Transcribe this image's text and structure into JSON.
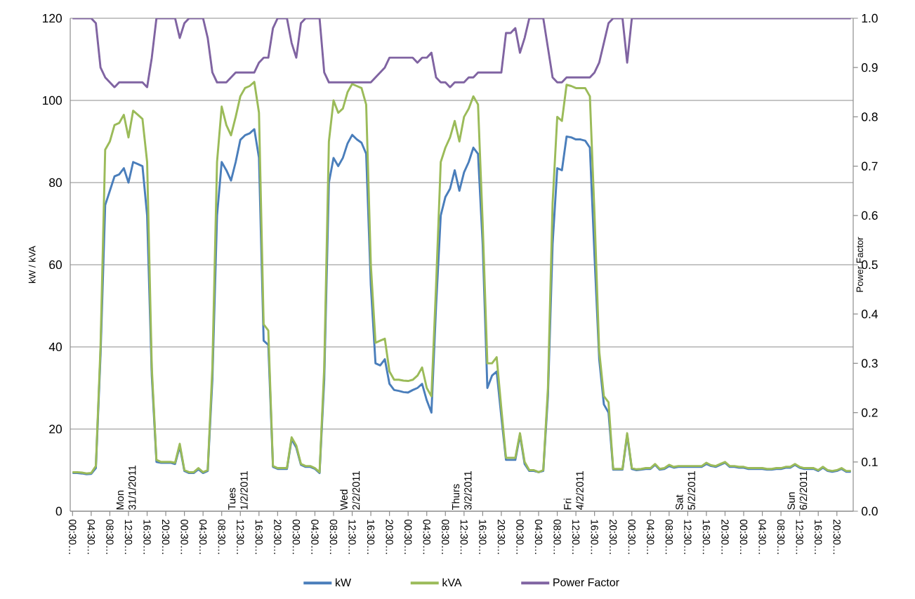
{
  "chart_data": {
    "type": "line",
    "ylabel": "kW / kVA",
    "y2label": "Power Factor",
    "ylim": [
      0,
      120
    ],
    "yticks": [
      0,
      20,
      40,
      60,
      80,
      100,
      120
    ],
    "y2lim": [
      0,
      1
    ],
    "y2ticks": [
      {
        "value": 0,
        "label": "0.0"
      },
      {
        "value": 0.1,
        "label": "0.1"
      },
      {
        "value": 0.2,
        "label": "0.2"
      },
      {
        "value": 0.3,
        "label": "0.3"
      },
      {
        "value": 0.4,
        "label": "0.4"
      },
      {
        "value": 0.5,
        "label": "0.5"
      },
      {
        "value": 0.6,
        "label": "0.6"
      },
      {
        "value": 0.7,
        "label": "0.7"
      },
      {
        "value": 0.8,
        "label": "0.8"
      },
      {
        "value": 0.9,
        "label": "0.9"
      },
      {
        "value": 1,
        "label": "1.0"
      }
    ],
    "categories": [
      "00:30…",
      null,
      null,
      null,
      "04:30…",
      null,
      null,
      null,
      "08:30…",
      null,
      null,
      null,
      "12:30…",
      null,
      null,
      null,
      "16:30…",
      null,
      null,
      null,
      "20:30…",
      null,
      null,
      null,
      "00:30…",
      null,
      null,
      null,
      "04:30…",
      null,
      null,
      null,
      "08:30…",
      null,
      null,
      null,
      "12:30…",
      null,
      null,
      null,
      "16:30…",
      null,
      null,
      null,
      "20:30…",
      null,
      null,
      null,
      "00:30…",
      null,
      null,
      null,
      "04:30…",
      null,
      null,
      null,
      "08:30…",
      null,
      null,
      null,
      "12:30…",
      null,
      null,
      null,
      "16:30…",
      null,
      null,
      null,
      "20:30…",
      null,
      null,
      null,
      "00:30…",
      null,
      null,
      null,
      "04:30…",
      null,
      null,
      null,
      "08:30…",
      null,
      null,
      null,
      "12:30…",
      null,
      null,
      null,
      "16:30…",
      null,
      null,
      null,
      "20:30…",
      null,
      null,
      null,
      "00:30…",
      null,
      null,
      null,
      "04:30…",
      null,
      null,
      null,
      "08:30…",
      null,
      null,
      null,
      "12:30…",
      null,
      null,
      null,
      "16:30…",
      null,
      null,
      null,
      "20:30…",
      null,
      null,
      null,
      "00:30…",
      null,
      null,
      null,
      "04:30…",
      null,
      null,
      null,
      "08:30…",
      null,
      null,
      null,
      "12:30…",
      null,
      null,
      null,
      "16:30…",
      null,
      null,
      null,
      "20:30…",
      null,
      null,
      null,
      "00:30…",
      null,
      null,
      null,
      "04:30…",
      null,
      null,
      null,
      "08:30…",
      null,
      null,
      null,
      "12:30…",
      null,
      null,
      null,
      "16:30…",
      null,
      null,
      null,
      "20:30…",
      null,
      null,
      null
    ],
    "grid": "y",
    "legend": "bottom",
    "series": [
      {
        "name": "kW",
        "color": "#4a7ebb",
        "values": [
          9.3,
          9.3,
          9.2,
          9,
          9.1,
          10.5,
          38,
          74.5,
          78,
          81.5,
          82,
          83.5,
          80,
          85,
          84.5,
          84,
          72,
          33,
          12,
          11.8,
          11.8,
          11.8,
          11.5,
          15.8,
          9.8,
          9.3,
          9.3,
          10.2,
          9.3,
          9.8,
          32,
          72,
          85,
          83,
          80.5,
          85,
          90.4,
          91.5,
          92,
          93,
          86,
          41.5,
          40.5,
          10.8,
          10.3,
          10.3,
          10.3,
          17.5,
          15.5,
          11.3,
          10.8,
          10.8,
          10.3,
          9.3,
          32,
          80,
          86,
          84,
          86,
          89.5,
          91.6,
          90.5,
          89.7,
          87,
          55,
          36,
          35.5,
          37,
          31,
          29.5,
          29.3,
          29,
          28.9,
          29.5,
          30,
          31,
          27,
          24,
          50,
          72,
          76.5,
          78.5,
          83,
          78,
          82.5,
          85,
          88.5,
          87,
          65,
          30,
          33,
          34,
          23,
          12.5,
          12.5,
          12.5,
          18.5,
          11.5,
          9.8,
          9.8,
          9.5,
          9.8,
          28,
          65,
          83.5,
          83,
          91.2,
          91,
          90.5,
          90.5,
          90.2,
          88.5,
          62,
          37,
          26,
          24,
          10.1,
          10.1,
          10.1,
          18.5,
          10.3,
          10,
          10.1,
          10.3,
          10.3,
          11.3,
          10.1,
          10.3,
          11,
          10.6,
          10.8,
          10.8,
          10.8,
          10.8,
          10.8,
          10.8,
          11.5,
          11,
          10.8,
          11.3,
          11.8,
          10.8,
          10.8,
          10.6,
          10.6,
          10.3,
          10.3,
          10.3,
          10.3,
          10.1,
          10.1,
          10.3,
          10.3,
          10.6,
          10.6,
          11.3,
          10.6,
          10.3,
          10.3,
          10.3,
          9.8,
          10.6,
          9.8,
          9.6,
          9.8,
          10.3,
          9.6,
          9.6
        ]
      },
      {
        "name": "kVA",
        "color": "#9bbb59",
        "values": [
          9.5,
          9.5,
          9.4,
          9.2,
          9.3,
          11,
          40,
          88,
          90,
          94,
          94.5,
          96.5,
          91,
          97.5,
          96.5,
          95.5,
          85,
          35,
          12.5,
          12,
          12,
          12,
          11.8,
          16.4,
          10,
          9.5,
          9.5,
          10.5,
          9.5,
          10,
          35,
          85,
          98.5,
          94,
          91.5,
          96,
          101,
          103,
          103.5,
          104.5,
          97,
          45.5,
          44,
          11,
          10.5,
          10.5,
          10.5,
          18,
          16,
          11.5,
          11,
          11,
          10.5,
          9.5,
          35,
          90,
          100,
          97,
          98,
          102,
          104,
          103.5,
          103,
          99,
          60,
          41,
          41.5,
          42,
          34,
          32,
          32,
          31.8,
          31.7,
          32,
          33,
          35,
          30,
          28,
          55,
          85,
          88.5,
          91,
          95,
          90,
          96,
          98,
          101,
          99,
          70,
          36,
          36,
          37.5,
          25,
          13,
          13,
          13,
          19,
          12,
          10,
          10,
          9.5,
          10,
          30,
          75,
          96,
          95,
          103.8,
          103.5,
          103,
          103,
          103,
          101,
          72,
          39,
          28,
          26.5,
          10.3,
          10.3,
          10.3,
          19,
          10.5,
          10.2,
          10.3,
          10.5,
          10.5,
          11.5,
          10.3,
          10.5,
          11.3,
          10.8,
          11,
          11,
          11,
          11,
          11,
          11,
          11.8,
          11.2,
          11,
          11.5,
          12,
          11,
          11,
          10.8,
          10.8,
          10.5,
          10.5,
          10.5,
          10.5,
          10.3,
          10.3,
          10.5,
          10.5,
          10.8,
          10.8,
          11.5,
          10.8,
          10.5,
          10.5,
          10.5,
          10,
          10.8,
          10,
          9.8,
          10,
          10.5,
          9.8,
          9.8
        ]
      },
      {
        "name": "Power Factor",
        "color": "#8064a2",
        "axis": "y2",
        "values": [
          1,
          1,
          1,
          1,
          1,
          0.99,
          0.9,
          0.88,
          0.87,
          0.86,
          0.87,
          0.87,
          0.87,
          0.87,
          0.87,
          0.87,
          0.86,
          0.92,
          1,
          1,
          1,
          1,
          1,
          0.96,
          0.99,
          1,
          1,
          1,
          1,
          0.96,
          0.89,
          0.87,
          0.87,
          0.87,
          0.88,
          0.89,
          0.89,
          0.89,
          0.89,
          0.89,
          0.91,
          0.92,
          0.92,
          0.98,
          1,
          1,
          1,
          0.95,
          0.92,
          0.99,
          1,
          1,
          1,
          1,
          0.89,
          0.87,
          0.87,
          0.87,
          0.87,
          0.87,
          0.87,
          0.87,
          0.87,
          0.87,
          0.87,
          0.88,
          0.89,
          0.9,
          0.92,
          0.92,
          0.92,
          0.92,
          0.92,
          0.92,
          0.91,
          0.92,
          0.92,
          0.93,
          0.88,
          0.87,
          0.87,
          0.86,
          0.87,
          0.87,
          0.87,
          0.88,
          0.88,
          0.89,
          0.89,
          0.89,
          0.89,
          0.89,
          0.89,
          0.97,
          0.97,
          0.98,
          0.93,
          0.96,
          1,
          1,
          1,
          1,
          0.94,
          0.88,
          0.87,
          0.87,
          0.88,
          0.88,
          0.88,
          0.88,
          0.88,
          0.88,
          0.89,
          0.91,
          0.95,
          0.99,
          1,
          1,
          1,
          0.91,
          1,
          1,
          1,
          1,
          1,
          1,
          1,
          1,
          1,
          1,
          1,
          1,
          1,
          1,
          1,
          1,
          1,
          1,
          1,
          1,
          1,
          1,
          1,
          1,
          1,
          1,
          1,
          1,
          1,
          1,
          1,
          1,
          1,
          1,
          1,
          1,
          1,
          1,
          1,
          1,
          1,
          1,
          1,
          1,
          1,
          1,
          1,
          1
        ]
      }
    ],
    "annotations": [
      "Mon 31/1/2011",
      "Tues 1/2/2011",
      "Wed 2/2/2011",
      "Thurs 3/2/2011",
      "Fri 4/2/2011",
      "Sat 5/2/2011",
      "Sun 6/2/2011"
    ]
  }
}
